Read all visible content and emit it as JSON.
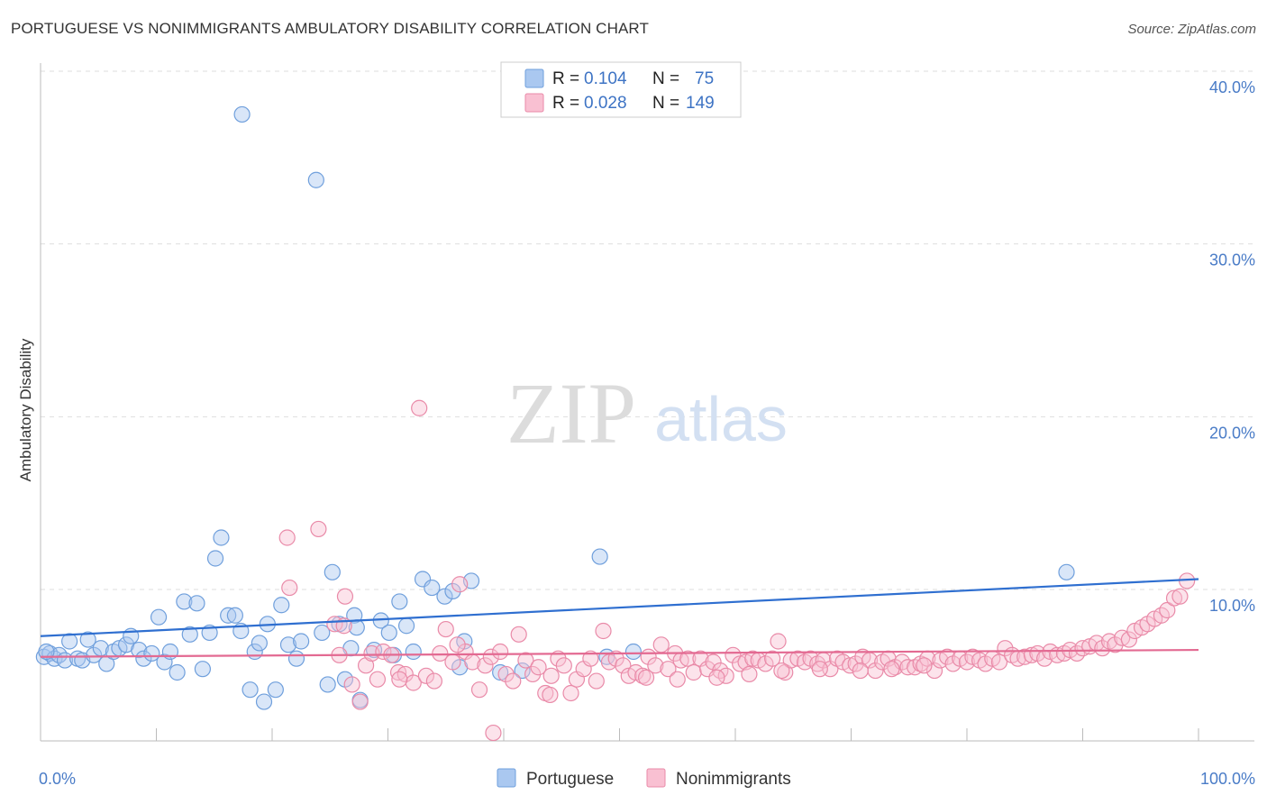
{
  "title": "PORTUGUESE VS NONIMMIGRANTS AMBULATORY DISABILITY CORRELATION CHART",
  "source": "Source: ZipAtlas.com",
  "watermark": {
    "zip": "ZIP",
    "atlas": "atlas"
  },
  "legend_top": {
    "rows": [
      {
        "r_label": "R =",
        "r_value": "0.104",
        "n_label": "N =",
        "n_value": "75",
        "color": "#aac8f0",
        "stroke": "#6f9fdc"
      },
      {
        "r_label": "R =",
        "r_value": "0.028",
        "n_label": "N =",
        "n_value": "149",
        "color": "#f9c0d2",
        "stroke": "#e98aa8"
      }
    ]
  },
  "legend_bottom": [
    {
      "label": "Portuguese",
      "color": "#aac8f0",
      "stroke": "#6f9fdc"
    },
    {
      "label": "Nonimmigrants",
      "color": "#f9c0d2",
      "stroke": "#e98aa8"
    }
  ],
  "chart_data": {
    "type": "scatter",
    "title": "PORTUGUESE VS NONIMMIGRANTS AMBULATORY DISABILITY CORRELATION CHART",
    "xlabel": "",
    "ylabel": "Ambulatory Disability",
    "xlim": [
      0,
      100
    ],
    "ylim": [
      0,
      40.5
    ],
    "x_tick_labels": [
      "0.0%",
      "100.0%"
    ],
    "y_ticks": [
      10,
      20,
      30,
      40
    ],
    "y_tick_labels": [
      "10.0%",
      "20.0%",
      "30.0%",
      "40.0%"
    ],
    "grid": true,
    "legend_placement": "top-center",
    "series": [
      {
        "name": "Portuguese",
        "color": "#aac8f0",
        "stroke": "#6f9fdc",
        "trend": {
          "x": [
            0,
            100
          ],
          "y": [
            7.3,
            10.6
          ],
          "color": "#2f6fd0"
        },
        "points": [
          [
            0.3,
            6.1
          ],
          [
            0.8,
            6.3
          ],
          [
            1.2,
            6.0
          ],
          [
            1.6,
            6.2
          ],
          [
            2.1,
            5.9
          ],
          [
            2.5,
            7.0
          ],
          [
            3.2,
            6.0
          ],
          [
            3.6,
            5.9
          ],
          [
            4.1,
            7.1
          ],
          [
            4.6,
            6.2
          ],
          [
            5.2,
            6.6
          ],
          [
            5.7,
            5.7
          ],
          [
            6.3,
            6.4
          ],
          [
            6.8,
            6.6
          ],
          [
            7.4,
            6.8
          ],
          [
            7.8,
            7.3
          ],
          [
            8.5,
            6.5
          ],
          [
            8.9,
            6.0
          ],
          [
            9.6,
            6.3
          ],
          [
            10.2,
            8.4
          ],
          [
            10.7,
            5.8
          ],
          [
            11.2,
            6.4
          ],
          [
            11.8,
            5.2
          ],
          [
            12.4,
            9.3
          ],
          [
            12.9,
            7.4
          ],
          [
            13.5,
            9.2
          ],
          [
            14.0,
            5.4
          ],
          [
            14.6,
            7.5
          ],
          [
            15.1,
            11.8
          ],
          [
            15.6,
            13.0
          ],
          [
            16.2,
            8.5
          ],
          [
            16.8,
            8.5
          ],
          [
            17.3,
            7.6
          ],
          [
            17.4,
            37.5
          ],
          [
            18.1,
            4.2
          ],
          [
            18.5,
            6.4
          ],
          [
            18.9,
            6.9
          ],
          [
            19.3,
            3.5
          ],
          [
            19.6,
            8.0
          ],
          [
            20.3,
            4.2
          ],
          [
            20.8,
            9.1
          ],
          [
            21.4,
            6.8
          ],
          [
            22.1,
            6.0
          ],
          [
            22.5,
            7.0
          ],
          [
            23.8,
            33.7
          ],
          [
            24.3,
            7.5
          ],
          [
            24.8,
            4.5
          ],
          [
            25.2,
            11.0
          ],
          [
            25.8,
            8.0
          ],
          [
            26.3,
            4.8
          ],
          [
            26.8,
            6.6
          ],
          [
            27.1,
            8.5
          ],
          [
            27.3,
            7.8
          ],
          [
            27.6,
            3.6
          ],
          [
            28.8,
            6.5
          ],
          [
            29.4,
            8.2
          ],
          [
            30.1,
            7.5
          ],
          [
            30.5,
            6.2
          ],
          [
            31.0,
            9.3
          ],
          [
            31.6,
            7.9
          ],
          [
            32.2,
            6.4
          ],
          [
            33.0,
            10.6
          ],
          [
            33.8,
            10.1
          ],
          [
            34.9,
            9.6
          ],
          [
            35.6,
            9.9
          ],
          [
            36.2,
            5.5
          ],
          [
            36.6,
            7.0
          ],
          [
            37.2,
            10.5
          ],
          [
            39.7,
            5.2
          ],
          [
            41.6,
            5.3
          ],
          [
            48.3,
            11.9
          ],
          [
            48.9,
            6.1
          ],
          [
            51.2,
            6.4
          ],
          [
            88.6,
            11.0
          ],
          [
            0.5,
            6.4
          ]
        ]
      },
      {
        "name": "Nonimmigrants",
        "color": "#f9c0d2",
        "stroke": "#e98aa8",
        "trend": {
          "x": [
            0,
            100
          ],
          "y": [
            6.1,
            6.5
          ],
          "color": "#e36a92"
        },
        "points": [
          [
            21.3,
            13.0
          ],
          [
            21.5,
            10.1
          ],
          [
            24.0,
            13.5
          ],
          [
            25.4,
            8.0
          ],
          [
            25.8,
            6.2
          ],
          [
            26.3,
            9.6
          ],
          [
            26.9,
            4.5
          ],
          [
            27.6,
            3.5
          ],
          [
            28.1,
            5.6
          ],
          [
            28.6,
            6.3
          ],
          [
            29.1,
            4.8
          ],
          [
            29.6,
            6.4
          ],
          [
            30.3,
            6.2
          ],
          [
            30.9,
            5.2
          ],
          [
            31.5,
            5.1
          ],
          [
            32.2,
            4.6
          ],
          [
            32.7,
            20.5
          ],
          [
            33.3,
            5.0
          ],
          [
            34.0,
            4.7
          ],
          [
            34.5,
            6.3
          ],
          [
            35.0,
            7.7
          ],
          [
            35.6,
            5.8
          ],
          [
            36.2,
            10.3
          ],
          [
            36.7,
            6.4
          ],
          [
            37.3,
            5.8
          ],
          [
            37.9,
            4.2
          ],
          [
            38.4,
            5.6
          ],
          [
            38.9,
            6.1
          ],
          [
            39.1,
            1.7
          ],
          [
            39.7,
            6.4
          ],
          [
            40.2,
            5.1
          ],
          [
            40.8,
            4.7
          ],
          [
            41.3,
            7.4
          ],
          [
            41.9,
            5.9
          ],
          [
            42.5,
            5.1
          ],
          [
            43.0,
            5.5
          ],
          [
            43.6,
            4.0
          ],
          [
            44.1,
            5.0
          ],
          [
            44.7,
            6.0
          ],
          [
            45.2,
            5.6
          ],
          [
            45.8,
            4.0
          ],
          [
            46.3,
            4.8
          ],
          [
            46.9,
            5.4
          ],
          [
            47.5,
            6.0
          ],
          [
            48.0,
            4.7
          ],
          [
            48.6,
            7.6
          ],
          [
            49.1,
            5.8
          ],
          [
            49.7,
            6.0
          ],
          [
            50.3,
            5.6
          ],
          [
            50.8,
            5.0
          ],
          [
            51.4,
            5.2
          ],
          [
            52.0,
            5.0
          ],
          [
            52.5,
            6.1
          ],
          [
            53.1,
            5.6
          ],
          [
            53.6,
            6.8
          ],
          [
            54.2,
            5.4
          ],
          [
            54.8,
            6.3
          ],
          [
            55.3,
            5.9
          ],
          [
            55.9,
            6.0
          ],
          [
            56.4,
            5.2
          ],
          [
            57.0,
            6.0
          ],
          [
            57.6,
            5.4
          ],
          [
            58.1,
            5.8
          ],
          [
            58.7,
            5.3
          ],
          [
            59.2,
            5.0
          ],
          [
            59.8,
            6.2
          ],
          [
            60.4,
            5.7
          ],
          [
            60.9,
            5.8
          ],
          [
            61.5,
            6.0
          ],
          [
            62.0,
            5.9
          ],
          [
            62.6,
            5.7
          ],
          [
            63.2,
            6.0
          ],
          [
            63.7,
            7.0
          ],
          [
            64.3,
            5.2
          ],
          [
            64.8,
            5.9
          ],
          [
            65.4,
            6.0
          ],
          [
            66.0,
            5.8
          ],
          [
            66.5,
            6.0
          ],
          [
            67.1,
            5.7
          ],
          [
            67.6,
            5.9
          ],
          [
            68.2,
            5.4
          ],
          [
            68.8,
            6.0
          ],
          [
            69.3,
            5.8
          ],
          [
            69.9,
            5.6
          ],
          [
            70.4,
            5.7
          ],
          [
            71.0,
            6.1
          ],
          [
            71.6,
            5.9
          ],
          [
            72.1,
            5.3
          ],
          [
            72.7,
            5.8
          ],
          [
            73.2,
            6.0
          ],
          [
            73.8,
            5.5
          ],
          [
            74.4,
            5.8
          ],
          [
            74.9,
            5.5
          ],
          [
            75.5,
            5.5
          ],
          [
            76.0,
            5.7
          ],
          [
            76.6,
            6.0
          ],
          [
            77.2,
            5.3
          ],
          [
            77.7,
            5.9
          ],
          [
            78.3,
            6.1
          ],
          [
            78.8,
            5.7
          ],
          [
            79.4,
            6.0
          ],
          [
            80.0,
            5.8
          ],
          [
            80.5,
            6.1
          ],
          [
            81.1,
            5.9
          ],
          [
            81.6,
            5.7
          ],
          [
            82.2,
            6.0
          ],
          [
            82.8,
            5.8
          ],
          [
            83.3,
            6.6
          ],
          [
            83.9,
            6.2
          ],
          [
            84.4,
            6.0
          ],
          [
            85.0,
            6.1
          ],
          [
            85.6,
            6.2
          ],
          [
            86.1,
            6.3
          ],
          [
            86.7,
            6.0
          ],
          [
            87.2,
            6.4
          ],
          [
            87.8,
            6.2
          ],
          [
            88.4,
            6.3
          ],
          [
            88.9,
            6.5
          ],
          [
            89.5,
            6.3
          ],
          [
            90.0,
            6.6
          ],
          [
            90.6,
            6.7
          ],
          [
            91.2,
            6.9
          ],
          [
            91.7,
            6.6
          ],
          [
            92.3,
            7.0
          ],
          [
            92.8,
            6.8
          ],
          [
            93.4,
            7.2
          ],
          [
            94.0,
            7.1
          ],
          [
            94.5,
            7.6
          ],
          [
            95.1,
            7.8
          ],
          [
            95.6,
            8.0
          ],
          [
            96.2,
            8.3
          ],
          [
            96.8,
            8.5
          ],
          [
            97.3,
            8.8
          ],
          [
            97.9,
            9.5
          ],
          [
            98.4,
            9.6
          ],
          [
            99.0,
            10.5
          ],
          [
            52.3,
            4.9
          ],
          [
            55.0,
            4.8
          ],
          [
            58.4,
            4.9
          ],
          [
            61.2,
            5.1
          ],
          [
            64.0,
            5.3
          ],
          [
            67.3,
            5.4
          ],
          [
            70.8,
            5.3
          ],
          [
            73.5,
            5.4
          ],
          [
            76.3,
            5.6
          ],
          [
            44.0,
            3.9
          ],
          [
            31.0,
            4.8
          ],
          [
            26.2,
            7.9
          ],
          [
            36.0,
            6.8
          ]
        ]
      }
    ]
  }
}
